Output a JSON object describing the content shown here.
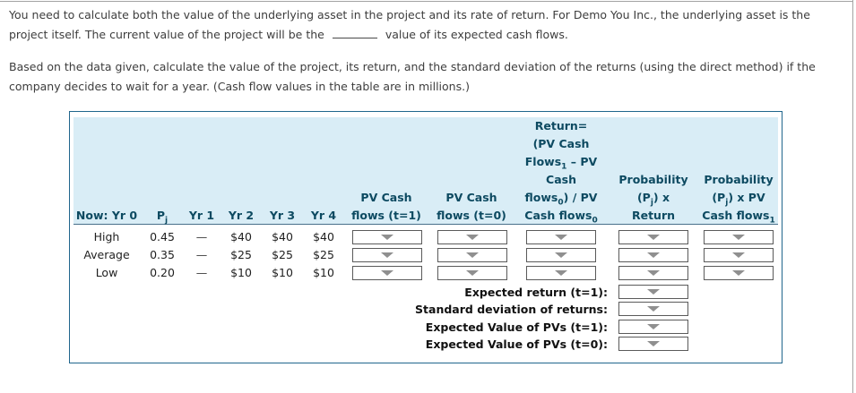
{
  "intro": {
    "line1": "You need to calculate both the value of the underlying asset in the project and its rate of return. For Demo You Inc., the underlying asset is the",
    "line2_before_blank": "project itself. The current value of the project will be the",
    "line2_after_blank": "value of its expected cash flows."
  },
  "instructions": {
    "line1": "Based on the data given, calculate the value of the project, its return, and the standard deviation of the returns (using the direct method) if the",
    "line2": "company decides to wait for a year. (Cash flow values in the table are in millions.)"
  },
  "colors": {
    "panel_border": "#20668c",
    "header_bg": "#d9edf6",
    "header_text": "#0d4a61",
    "dropdown_arrow": "#8f8f8f"
  },
  "table": {
    "headers": {
      "now": "Now: Yr 0",
      "pj": {
        "pre": "P",
        "sub": "j"
      },
      "yr1": "Yr 1",
      "yr2": "Yr 2",
      "yr3": "Yr 3",
      "yr4": "Yr 4",
      "pv_t1": {
        "line1": "PV Cash",
        "line2": "flows (t=1)"
      },
      "pv_t0": {
        "line1": "PV Cash",
        "line2": "flows (t=0)"
      },
      "return": {
        "line1": "Return=",
        "line2": "(PV Cash",
        "line3": {
          "pre": "Flows",
          "sub": "1",
          "post": " – PV"
        },
        "line4": "Cash",
        "line5": {
          "pre": "flows",
          "sub": "0",
          "post": ") / PV"
        },
        "line6": {
          "pre": "Cash flows",
          "sub": "0"
        }
      },
      "prob_return": {
        "line1": "Probability",
        "line2": {
          "pre": "(P",
          "sub": "j",
          "post": ") x"
        },
        "line3": "Return"
      },
      "prob_pv": {
        "line1": "Probability",
        "line2": {
          "pre": "(P",
          "sub": "j",
          "post": ") x PV"
        },
        "line3": {
          "pre": "Cash flows",
          "sub": "1"
        }
      }
    },
    "rows": [
      {
        "label": "High",
        "pj": "0.45",
        "yr1": "—",
        "yr2": "$40",
        "yr3": "$40",
        "yr4": "$40"
      },
      {
        "label": "Average",
        "pj": "0.35",
        "yr1": "—",
        "yr2": "$25",
        "yr3": "$25",
        "yr4": "$25"
      },
      {
        "label": "Low",
        "pj": "0.20",
        "yr1": "—",
        "yr2": "$10",
        "yr3": "$10",
        "yr4": "$10"
      }
    ],
    "summary": [
      {
        "label": "Expected return (t=1):"
      },
      {
        "label": "Standard deviation of returns:"
      },
      {
        "label": "Expected Value of PVs (t=1):"
      },
      {
        "label": "Expected Value of PVs (t=0):"
      }
    ]
  }
}
